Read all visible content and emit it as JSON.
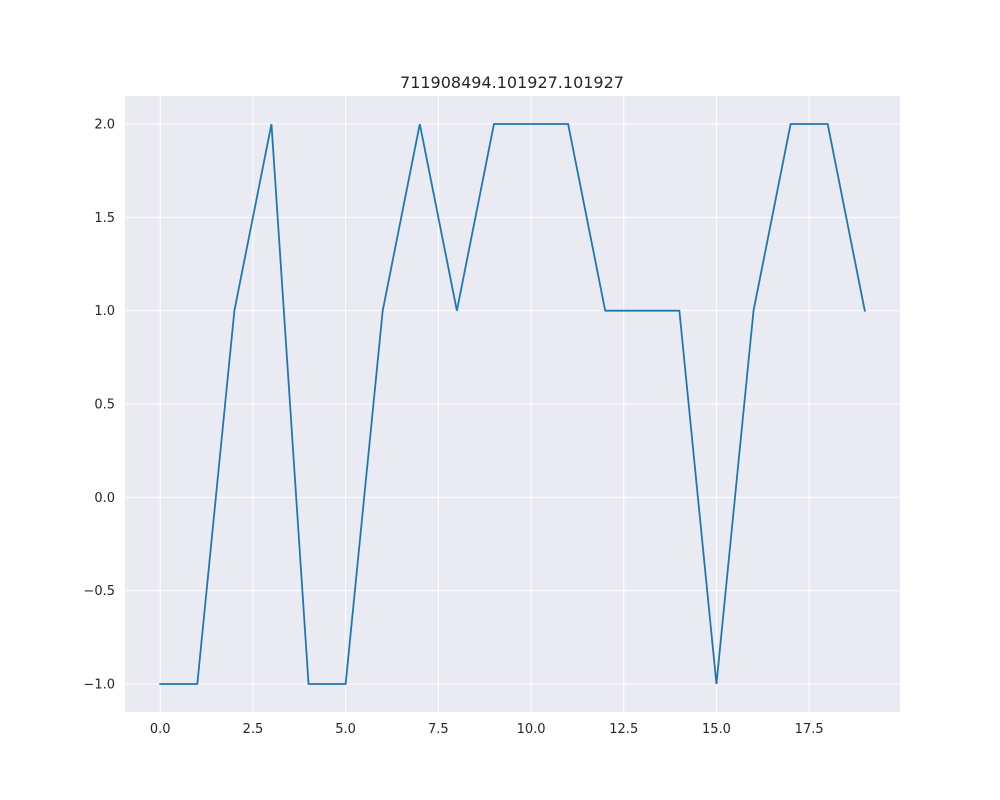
{
  "chart_data": {
    "type": "line",
    "title": "711908494.101927.101927",
    "xlabel": "",
    "ylabel": "",
    "x": [
      0,
      1,
      2,
      3,
      4,
      5,
      6,
      7,
      8,
      9,
      10,
      11,
      12,
      13,
      14,
      15,
      16,
      17,
      18,
      19
    ],
    "series": [
      {
        "values": [
          -1,
          -1,
          1,
          2,
          -1,
          -1,
          1,
          2,
          1,
          2,
          2,
          2,
          1,
          1,
          1,
          -1,
          1,
          2,
          2,
          1
        ]
      }
    ],
    "xlim": [
      -0.95,
      19.95
    ],
    "ylim": [
      -1.15,
      2.15
    ],
    "x_ticks": [
      0.0,
      2.5,
      5.0,
      7.5,
      10.0,
      12.5,
      15.0,
      17.5
    ],
    "x_tick_labels": [
      "0.0",
      "2.5",
      "5.0",
      "7.5",
      "10.0",
      "12.5",
      "15.0",
      "17.5"
    ],
    "y_ticks": [
      -1.0,
      -0.5,
      0.0,
      0.5,
      1.0,
      1.5,
      2.0
    ],
    "y_tick_labels": [
      "−1.0",
      "−0.5",
      "0.0",
      "0.5",
      "1.0",
      "1.5",
      "2.0"
    ],
    "grid": true,
    "colors": {
      "background": "#eaeaf2",
      "grid": "#ffffff",
      "line": "#1f77b4",
      "text": "#262626"
    }
  }
}
